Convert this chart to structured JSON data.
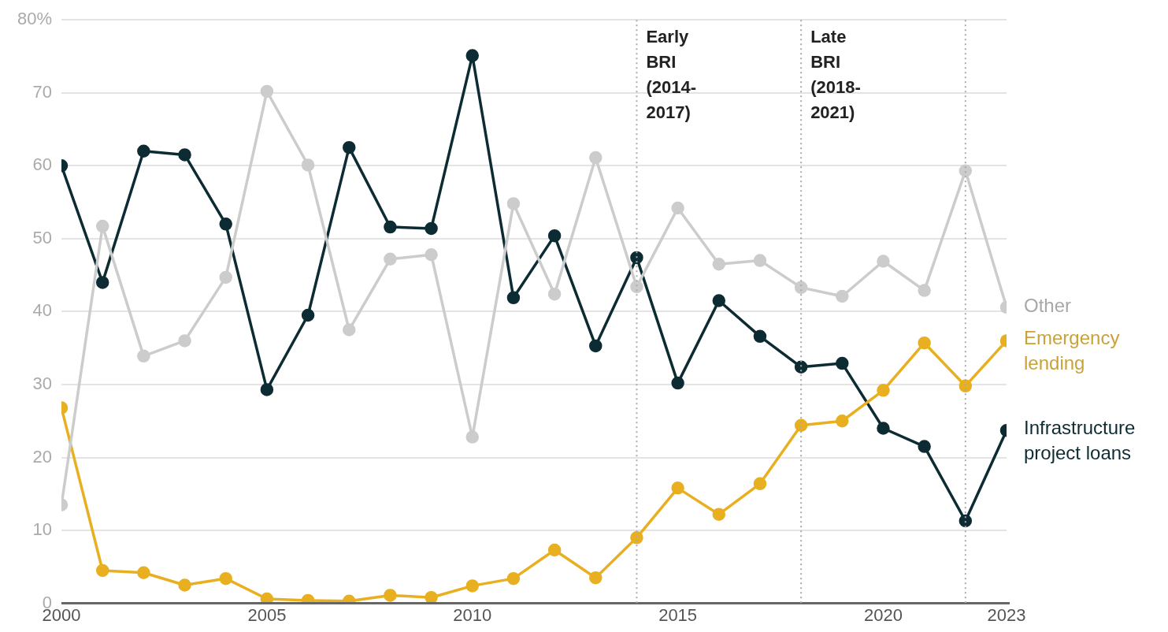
{
  "chart_data": {
    "type": "line",
    "x": [
      2000,
      2001,
      2002,
      2003,
      2004,
      2005,
      2006,
      2007,
      2008,
      2009,
      2010,
      2011,
      2012,
      2013,
      2014,
      2015,
      2016,
      2017,
      2018,
      2019,
      2020,
      2021,
      2022,
      2023
    ],
    "series": [
      {
        "name": "Other",
        "color": "#cccccc",
        "values": [
          13.5,
          51.7,
          33.9,
          36,
          44.7,
          70.2,
          60.1,
          37.5,
          47.2,
          47.8,
          22.8,
          54.8,
          42.4,
          61.1,
          43.4,
          54.2,
          46.5,
          47,
          43.3,
          42.1,
          46.9,
          42.9,
          59.3,
          40.6
        ]
      },
      {
        "name": "Emergency lending",
        "color": "#e8b020",
        "values": [
          26.8,
          4.5,
          4.2,
          2.5,
          3.4,
          0.6,
          0.4,
          0.3,
          1.1,
          0.8,
          2.4,
          3.4,
          7.3,
          3.5,
          9,
          15.8,
          12.2,
          16.4,
          24.4,
          25,
          29.2,
          35.7,
          29.8,
          36
        ]
      },
      {
        "name": "Infrastructure project loans",
        "color": "#0d2b33",
        "values": [
          60,
          44,
          62,
          61.5,
          52,
          29.3,
          39.5,
          62.5,
          51.6,
          51.4,
          75.1,
          41.9,
          50.4,
          35.3,
          47.4,
          30.2,
          41.5,
          36.6,
          32.4,
          32.9,
          24,
          21.5,
          11.3,
          23.7
        ]
      }
    ],
    "xlim": [
      2000,
      2023
    ],
    "xticks": [
      2000,
      2005,
      2010,
      2015,
      2020,
      2023
    ],
    "ylim": [
      0,
      80
    ],
    "yticks": [
      0,
      10,
      20,
      30,
      40,
      50,
      60,
      70,
      {
        "value": 80,
        "label": "80%"
      }
    ],
    "grid": "y",
    "legend": false,
    "marker": "circle",
    "line_style": "solid",
    "ref_lines": [
      {
        "axis": "x",
        "value": 2014,
        "label": "Early\nBRI\n(2014-\n2017)",
        "line_style": "dotted"
      },
      {
        "axis": "x",
        "value": 2018,
        "label": "Late\nBRI\n(2018-\n2021)",
        "line_style": "dotted"
      },
      {
        "axis": "x",
        "value": 2022,
        "line_style": "dotted"
      }
    ]
  }
}
